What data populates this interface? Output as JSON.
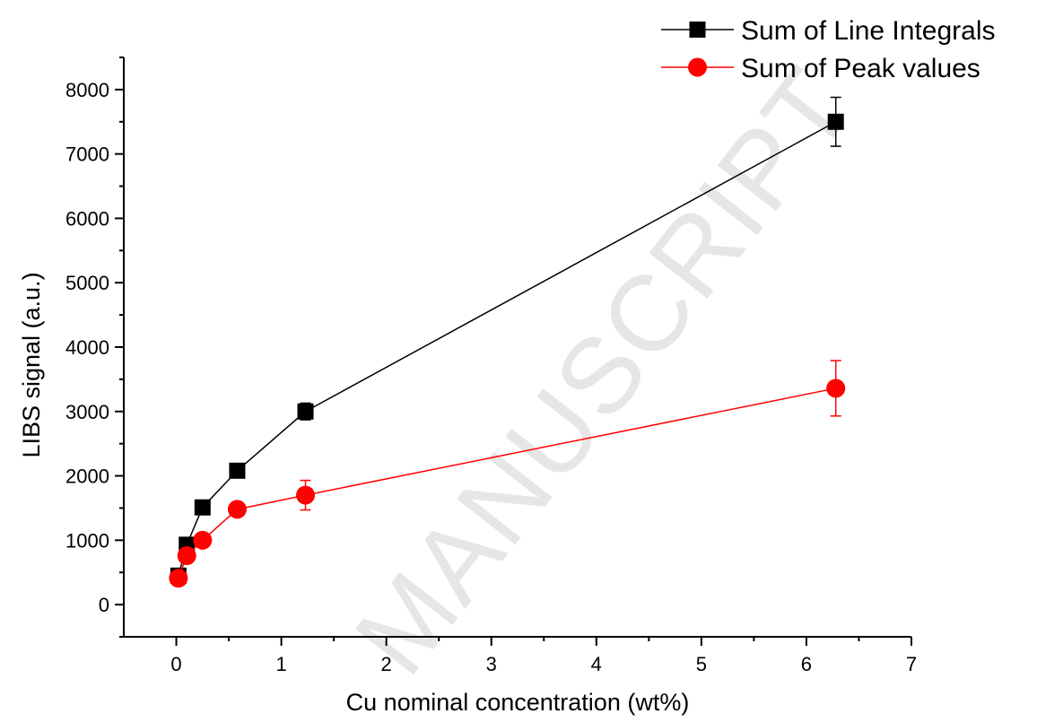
{
  "chart_data": {
    "type": "line",
    "xlabel": "Cu nominal concentration (wt%)",
    "ylabel": "LIBS signal (a.u.)",
    "xlim": [
      -0.5,
      7
    ],
    "ylim": [
      -500,
      8500
    ],
    "xticks": [
      0,
      1,
      2,
      3,
      4,
      5,
      6,
      7
    ],
    "yticks": [
      0,
      1000,
      2000,
      3000,
      4000,
      5000,
      6000,
      7000,
      8000
    ],
    "grid": false,
    "legend_position": "top-right",
    "watermark": "MANUSCRIPT",
    "series": [
      {
        "name": "Sum of Line Integrals",
        "color": "#000000",
        "marker": "square",
        "x": [
          0.02,
          0.1,
          0.25,
          0.58,
          1.23,
          6.28
        ],
        "y": [
          450,
          930,
          1510,
          2080,
          3000,
          7500
        ],
        "err": [
          60,
          70,
          80,
          90,
          130,
          380
        ]
      },
      {
        "name": "Sum of Peak values",
        "color": "#ff0000",
        "marker": "circle",
        "x": [
          0.02,
          0.1,
          0.25,
          0.58,
          1.23,
          6.28
        ],
        "y": [
          410,
          760,
          1000,
          1480,
          1700,
          3360
        ],
        "err": [
          50,
          60,
          70,
          80,
          230,
          430
        ]
      }
    ]
  }
}
